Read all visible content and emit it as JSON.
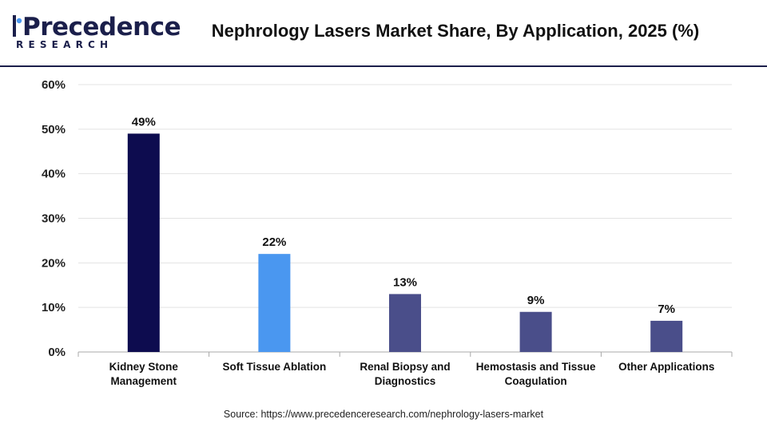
{
  "header": {
    "logo_text": "Precedence",
    "logo_subtext": "RESEARCH",
    "title": "Nephrology Lasers Market Share, By Application, 2025 (%)"
  },
  "footer": {
    "source": "Source: https://www.precedenceresearch.com/nephrology-lasers-market"
  },
  "colors": {
    "brand": "#1b1f4b",
    "bar_dark": "#0d0c4f",
    "bar_light": "#4a97f0",
    "bar_mid": "#4a4e8a"
  },
  "chart_data": {
    "type": "bar",
    "title": "Nephrology Lasers Market Share, By Application, 2025 (%)",
    "categories": [
      [
        "Kidney Stone",
        "Management"
      ],
      [
        "Soft Tissue Ablation"
      ],
      [
        "Renal Biopsy and",
        "Diagnostics"
      ],
      [
        "Hemostasis and Tissue",
        "Coagulation"
      ],
      [
        "Other Applications"
      ]
    ],
    "values": [
      49,
      22,
      13,
      9,
      7
    ],
    "value_labels": [
      "49%",
      "22%",
      "13%",
      "9%",
      "7%"
    ],
    "bar_colors": [
      "#0d0c4f",
      "#4a97f0",
      "#4a4e8a",
      "#4a4e8a",
      "#4a4e8a"
    ],
    "yticks": [
      "0%",
      "10%",
      "20%",
      "30%",
      "40%",
      "50%",
      "60%"
    ],
    "ylim": [
      0,
      60
    ],
    "xlabel": "",
    "ylabel": "",
    "grid": true,
    "legend": "none"
  }
}
